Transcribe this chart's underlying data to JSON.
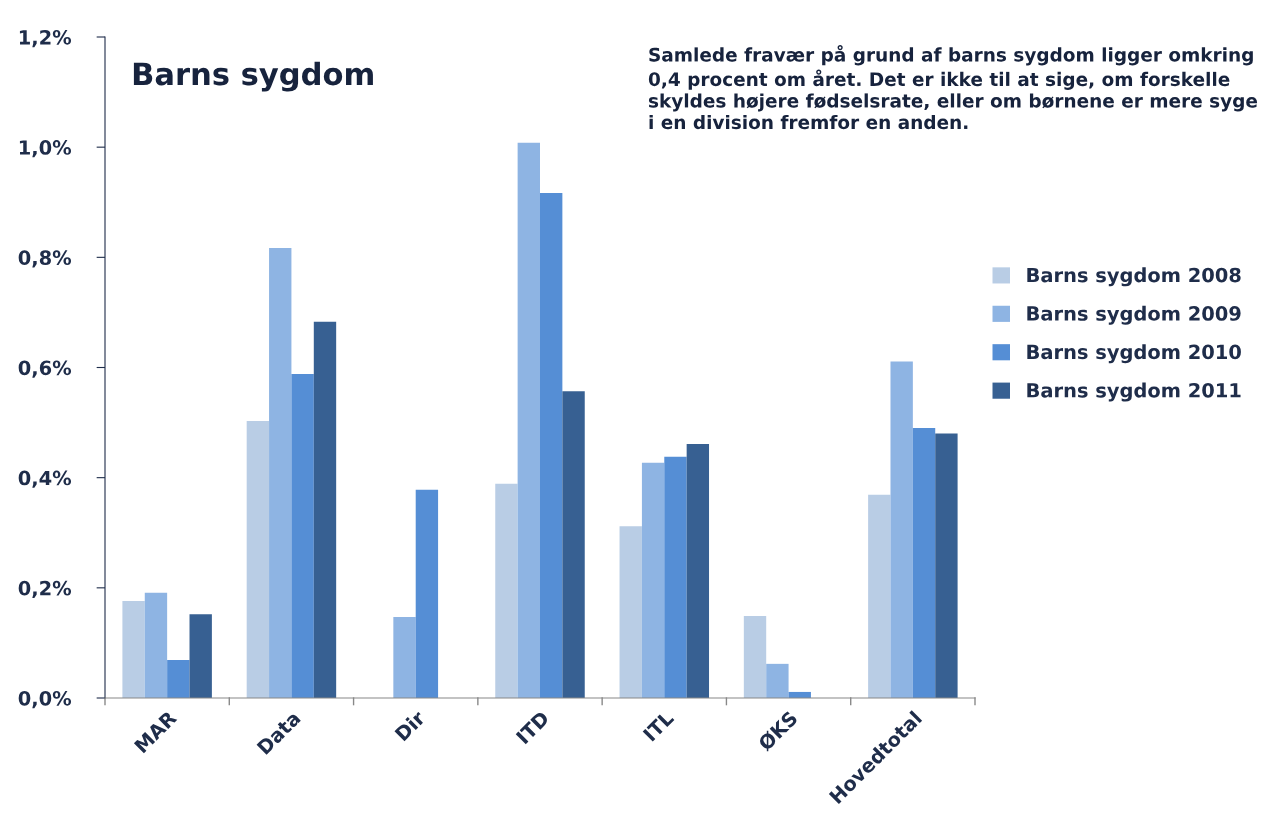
{
  "chart_data": {
    "type": "bar",
    "title": "Barns sygdom",
    "annotations": [
      "Samlede fravær på grund af barns sygdom ligger omkring 0,4 procent om året. Det er ikke til at sige, om forskelle skyldes højere fødselsrate, eller om børnene er mere syge i en division fremfor en anden."
    ],
    "categories": [
      "MAR",
      "Data",
      "Dir",
      "ITD",
      "ITL",
      "ØKS",
      "Hovedtotal"
    ],
    "series": [
      {
        "name": "Barns sygdom 2008",
        "color": "#b9cde5",
        "values": [
          0.176,
          0.503,
          null,
          0.389,
          0.312,
          0.149,
          0.369
        ]
      },
      {
        "name": "Barns sygdom 2009",
        "color": "#8eb4e3",
        "values": [
          0.191,
          0.817,
          0.147,
          1.008,
          0.427,
          0.062,
          0.611
        ]
      },
      {
        "name": "Barns sygdom 2010",
        "color": "#558ed5",
        "values": [
          0.069,
          0.588,
          0.378,
          0.917,
          0.438,
          0.011,
          0.49
        ]
      },
      {
        "name": "Barns sygdom 2011",
        "color": "#376092",
        "values": [
          0.152,
          0.683,
          null,
          0.557,
          0.461,
          null,
          0.48
        ]
      }
    ],
    "ylim": [
      0,
      1.2
    ],
    "yticks": [
      {
        "value": 0,
        "label": "0,0%"
      },
      {
        "value": 0.2,
        "label": "0,2%"
      },
      {
        "value": 0.4,
        "label": "0,4%"
      },
      {
        "value": 0.6,
        "label": "0,6%"
      },
      {
        "value": 0.8,
        "label": "0,8%"
      },
      {
        "value": 1.0,
        "label": "1,0%"
      },
      {
        "value": 1.2,
        "label": "1,2%"
      }
    ],
    "grid": false,
    "legend": "right"
  }
}
